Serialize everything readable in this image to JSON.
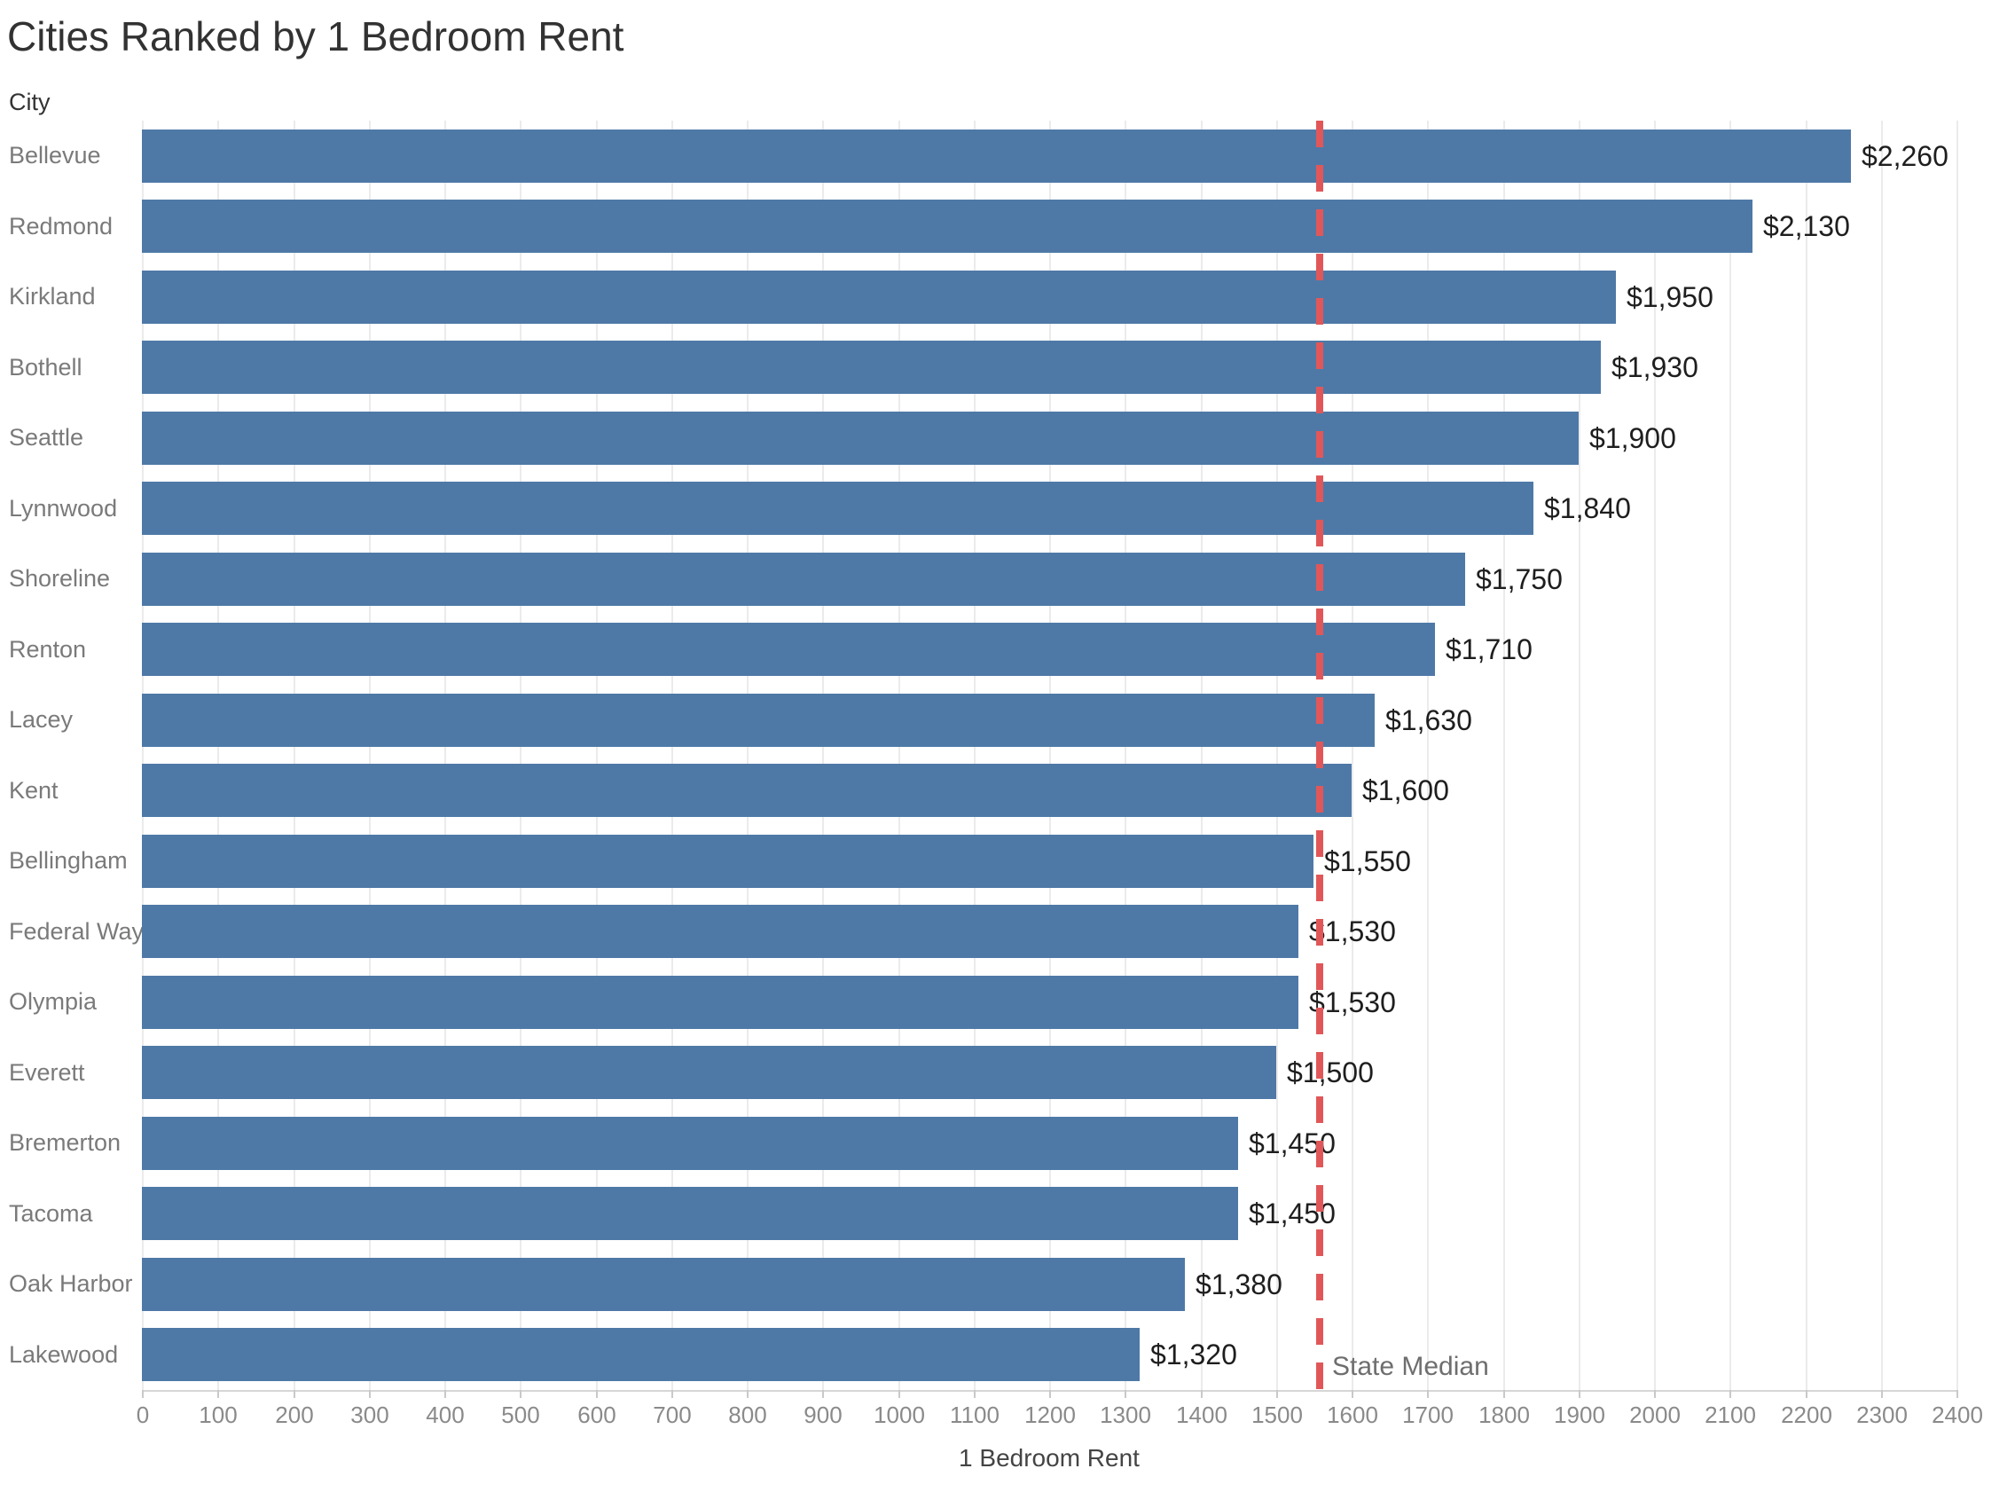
{
  "title": "Cities Ranked by 1 Bedroom Rent",
  "y_axis_header": "City",
  "x_axis": {
    "label": "1 Bedroom Rent",
    "min": 0,
    "max": 2400,
    "tick_step": 100
  },
  "reference_line": {
    "label": "State Median",
    "value": 1558
  },
  "colors": {
    "bar": "#4e79a7",
    "reference_line": "#e15759",
    "gridline": "#ebebeb",
    "axis_line": "#d6d6d6",
    "axis_tick": "#c9c9c9",
    "title_text": "#323232",
    "header_text": "#333333",
    "category_text": "#7a7a7a",
    "tick_text": "#8a8a8a",
    "value_text": "#1e1e1e",
    "reference_label_text": "#6e6e6e"
  },
  "chart_data": {
    "type": "bar",
    "orientation": "horizontal",
    "title": "Cities Ranked by 1 Bedroom Rent",
    "categories": [
      "Bellevue",
      "Redmond",
      "Kirkland",
      "Bothell",
      "Seattle",
      "Lynnwood",
      "Shoreline",
      "Renton",
      "Lacey",
      "Kent",
      "Bellingham",
      "Federal Way",
      "Olympia",
      "Everett",
      "Bremerton",
      "Tacoma",
      "Oak Harbor",
      "Lakewood"
    ],
    "values": [
      2260,
      2130,
      1950,
      1930,
      1900,
      1840,
      1750,
      1710,
      1630,
      1600,
      1550,
      1530,
      1530,
      1500,
      1450,
      1450,
      1380,
      1320
    ],
    "value_labels": [
      "$2,260",
      "$2,130",
      "$1,950",
      "$1,930",
      "$1,900",
      "$1,840",
      "$1,750",
      "$1,710",
      "$1,630",
      "$1,600",
      "$1,550",
      "$1,530",
      "$1,530",
      "$1,500",
      "$1,450",
      "$1,450",
      "$1,380",
      "$1,320"
    ],
    "xlabel": "1 Bedroom Rent",
    "ylabel": "City",
    "xlim": [
      0,
      2400
    ],
    "xtick_step": 100,
    "grid": true,
    "legend": false,
    "reference_line": {
      "label": "State Median",
      "x": 1558,
      "style": "dashed",
      "color": "#e15759"
    }
  }
}
